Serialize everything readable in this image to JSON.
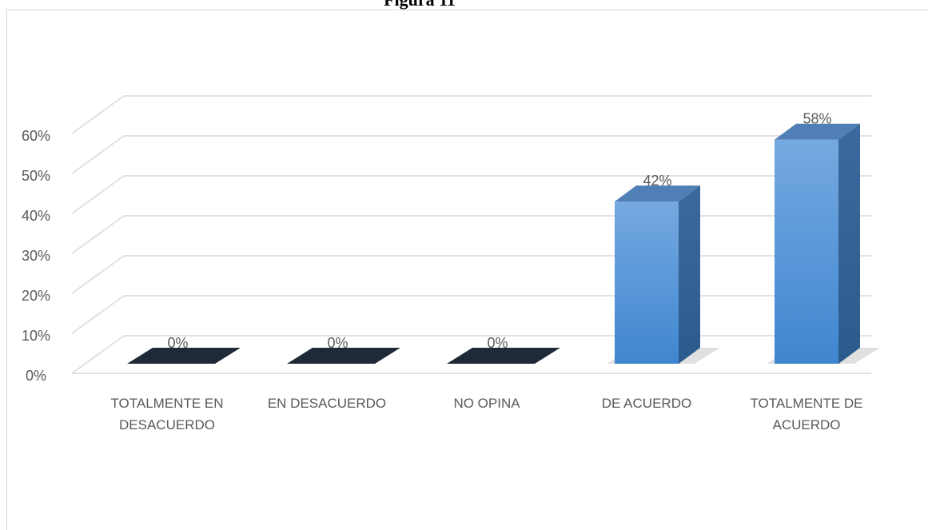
{
  "chart_data": {
    "type": "bar3d",
    "title": "Figura 11",
    "categories": [
      "TOTALMENTE EN DESACUERDO",
      "EN DESACUERDO",
      "NO OPINA",
      "DE ACUERDO",
      "TOTALMENTE DE ACUERDO"
    ],
    "values": [
      0,
      0,
      0,
      42,
      58
    ],
    "value_labels": [
      "0%",
      "0%",
      "0%",
      "42%",
      "58%"
    ],
    "color": "#4a90d9",
    "ylim": [
      0,
      60
    ],
    "yticks": [
      {
        "value": 0,
        "label": "0%"
      },
      {
        "value": 10,
        "label": "10%"
      },
      {
        "value": 20,
        "label": "20%"
      },
      {
        "value": 30,
        "label": "30%"
      },
      {
        "value": 40,
        "label": "40%"
      },
      {
        "value": 50,
        "label": "50%"
      },
      {
        "value": 60,
        "label": "60%"
      }
    ],
    "grid": true
  }
}
